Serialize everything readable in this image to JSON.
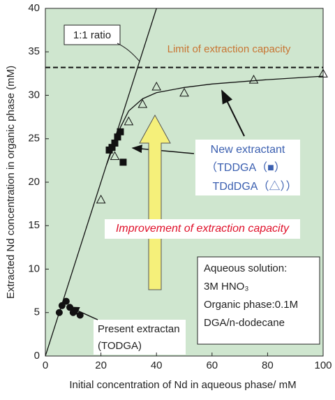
{
  "chart_data": {
    "type": "scatter",
    "xlabel": "Initial concentration of Nd in aqueous phase/ mM",
    "ylabel": "Extracted Nd concentration in organic phase (mM)",
    "xlim": [
      0,
      100
    ],
    "ylim": [
      0,
      40
    ],
    "xticks": [
      0,
      20,
      40,
      60,
      80,
      100
    ],
    "yticks": [
      0,
      5,
      10,
      15,
      20,
      25,
      30,
      35,
      40
    ],
    "background": "#cfe6cf",
    "series": [
      {
        "mode": "line",
        "color": "#111111",
        "dash": false,
        "x": [
          0,
          40
        ],
        "values": [
          0,
          40
        ]
      },
      {
        "mode": "line",
        "color": "#111111",
        "dash": true,
        "x": [
          0,
          100
        ],
        "values": [
          33.2,
          33.2
        ]
      },
      {
        "mode": "line",
        "color": "#111111",
        "dash": false,
        "x": [
          22,
          25,
          27,
          30,
          35,
          40,
          50,
          60,
          80,
          100
        ],
        "values": [
          22,
          24.5,
          26.3,
          28.2,
          29.6,
          30.3,
          30.9,
          31.3,
          31.8,
          32.2
        ]
      },
      {
        "mode": "marker",
        "marker": "circle",
        "color": "#111111",
        "x": [
          5,
          6,
          7.5,
          8.8,
          10,
          12.5
        ],
        "values": [
          5,
          5.8,
          6.3,
          5.6,
          5,
          4.7
        ]
      },
      {
        "mode": "marker",
        "marker": "square",
        "color": "#111111",
        "x": [
          23,
          24,
          25,
          26,
          27,
          28
        ],
        "values": [
          23.7,
          24,
          24.5,
          25.2,
          25.8,
          22.3
        ]
      },
      {
        "mode": "marker",
        "marker": "triangle",
        "color": "#111111",
        "x": [
          20,
          25,
          30,
          35,
          40,
          50,
          75,
          100
        ],
        "values": [
          18,
          23,
          27,
          29,
          31,
          30.3,
          31.8,
          32.5
        ]
      }
    ],
    "annotations": {
      "ratio": "1:1 ratio",
      "limit": "Limit of extraction capacity",
      "new_extractant": [
        "New extractant",
        "（TDDGA（■）",
        "TDdDGA（△））"
      ],
      "improvement": "Improvement of extraction capacity",
      "conditions": [
        "Aqueous solution:",
        "3M HNO₃",
        "Organic phase:0.1M",
        "DGA/n-dodecane"
      ],
      "present": [
        "Present extractan",
        "(TODGA)"
      ]
    }
  }
}
